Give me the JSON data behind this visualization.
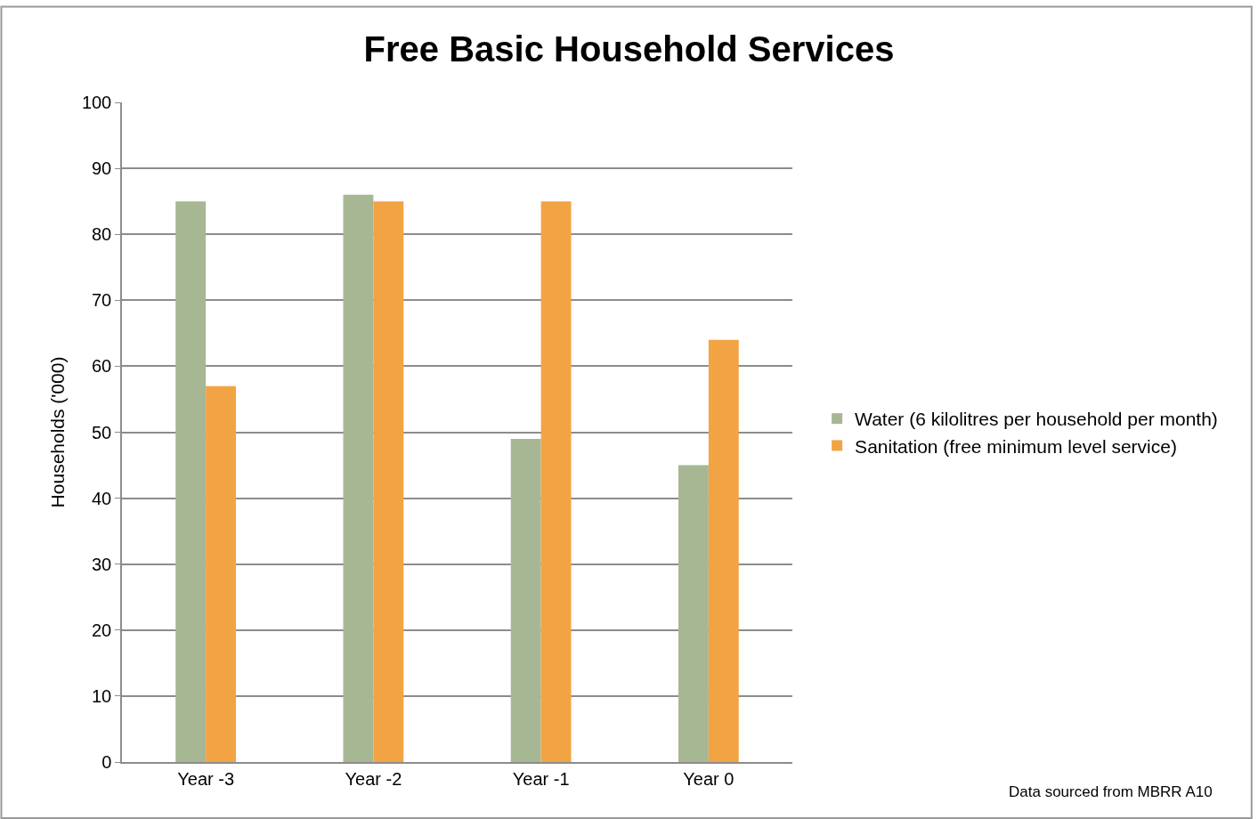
{
  "chart_data": {
    "type": "bar",
    "title": "Free Basic Household Services",
    "ylabel": "Households ('000)",
    "categories": [
      "Year -3",
      "Year -2",
      "Year -1",
      "Year 0"
    ],
    "series": [
      {
        "name": "Water (6 kilolitres per household per month)",
        "color": "#a7b794",
        "values": [
          85,
          86,
          49,
          45
        ]
      },
      {
        "name": "Sanitation (free minimum level service)",
        "color": "#f2a444",
        "values": [
          57,
          85,
          85,
          64
        ]
      }
    ],
    "ylim": [
      0,
      100
    ],
    "yticks": [
      0,
      10,
      20,
      30,
      40,
      50,
      60,
      70,
      80,
      90,
      100
    ],
    "grid": "y",
    "legend": "right",
    "annotations": [
      "Data sourced from MBRR A10"
    ]
  }
}
